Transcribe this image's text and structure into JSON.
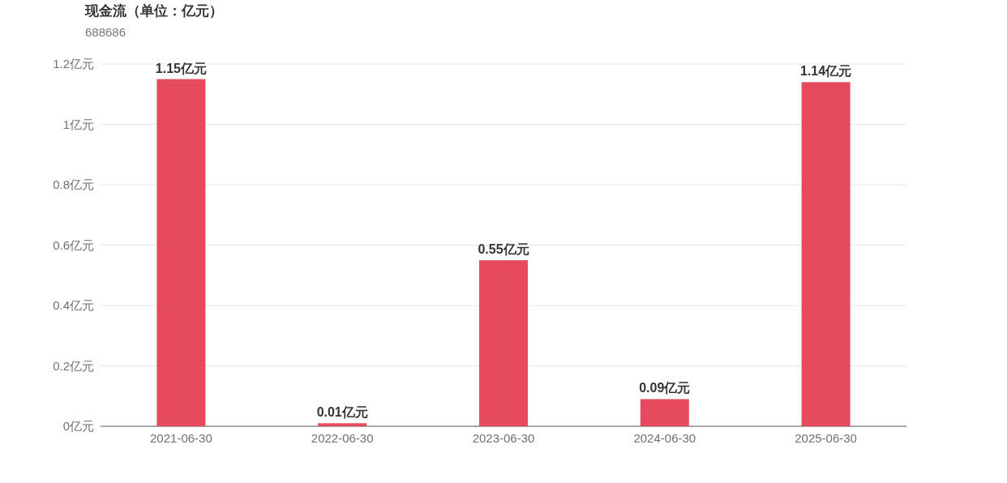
{
  "chart_data": {
    "type": "bar",
    "title": "现金流（单位：亿元）",
    "subtitle": "688686",
    "categories": [
      "2021-06-30",
      "2022-06-30",
      "2023-06-30",
      "2024-06-30",
      "2025-06-30"
    ],
    "values": [
      1.15,
      0.01,
      0.55,
      0.09,
      1.14
    ],
    "value_labels": [
      "1.15亿元",
      "0.01亿元",
      "0.55亿元",
      "0.09亿元",
      "1.14亿元"
    ],
    "color": "#e64b5d",
    "ylim": [
      0,
      1.2
    ],
    "yticks": [
      {
        "value": 0,
        "label": "0亿元"
      },
      {
        "value": 0.2,
        "label": "0.2亿元"
      },
      {
        "value": 0.4,
        "label": "0.4亿元"
      },
      {
        "value": 0.6,
        "label": "0.6亿元"
      },
      {
        "value": 0.8,
        "label": "0.8亿元"
      },
      {
        "value": 1,
        "label": "1亿元"
      },
      {
        "value": 1.2,
        "label": "1.2亿元"
      }
    ],
    "grid": "y"
  }
}
